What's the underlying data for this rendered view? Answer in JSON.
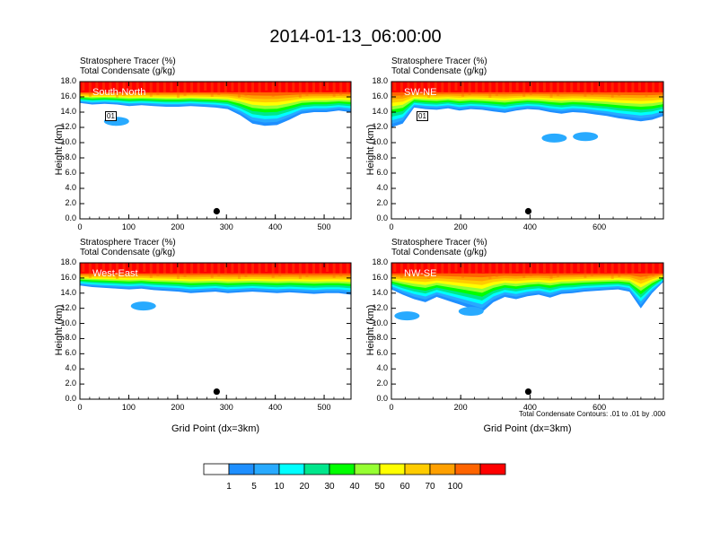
{
  "title": "2014-01-13_06:00:00",
  "colorbar": {
    "colors": [
      "#ffffff",
      "#1e8fff",
      "#28aaff",
      "#00ffff",
      "#00e68c",
      "#00ff00",
      "#96ff32",
      "#ffff00",
      "#ffcc00",
      "#ffa000",
      "#ff6400",
      "#ff0000"
    ],
    "labels": [
      "1",
      "5",
      "10",
      "20",
      "30",
      "40",
      "50",
      "60",
      "70",
      "100"
    ]
  },
  "contour_note": "Total Condensate Contours: .01 to .01 by .000",
  "chart_data": [
    {
      "type": "heatmap",
      "label": "South-North",
      "title_line1": "Stratosphere Tracer   (%)",
      "title_line2": "Total Condensate   (g/kg)",
      "ylabel": "Height (km)",
      "xlabel": "",
      "xlim": [
        0,
        555
      ],
      "ylim": [
        0,
        18
      ],
      "xticks": [
        "0",
        "100",
        "200",
        "300",
        "400",
        "500"
      ],
      "yticks": [
        "0.0",
        "2.0",
        "4.0",
        "6.0",
        "8.0",
        "10.0",
        "12.0",
        "14.0",
        "16.0",
        "18.0"
      ],
      "contour_label": "01",
      "marker": {
        "x": 280,
        "y": 1.0
      },
      "tracer_bottom_km": [
        15.2,
        15.0,
        15.1,
        15.0,
        14.8,
        14.9,
        14.8,
        14.7,
        14.7,
        14.8,
        14.7,
        14.6,
        14.4,
        13.6,
        12.5,
        12.2,
        12.3,
        13.0,
        13.8,
        14.0,
        14.0,
        14.2,
        14.0
      ],
      "blobs": [
        {
          "x": 75,
          "y": 12.8
        }
      ]
    },
    {
      "type": "heatmap",
      "label": "SW-NE",
      "title_line1": "Stratosphere Tracer   (%)",
      "title_line2": "Total Condensate   (g/kg)",
      "ylabel": "Height (km)",
      "xlabel": "",
      "xlim": [
        0,
        785
      ],
      "ylim": [
        0,
        18
      ],
      "xticks": [
        "0",
        "200",
        "400",
        "600"
      ],
      "yticks": [
        "0.0",
        "2.0",
        "4.0",
        "6.0",
        "8.0",
        "10.0",
        "12.0",
        "14.0",
        "16.0",
        "18.0"
      ],
      "contour_label": "01",
      "marker": {
        "x": 395,
        "y": 1.0
      },
      "tracer_bottom_km": [
        12.0,
        12.5,
        14.6,
        14.4,
        14.3,
        14.5,
        14.2,
        14.4,
        14.3,
        14.1,
        13.9,
        14.2,
        14.4,
        14.3,
        14.0,
        13.8,
        14.0,
        13.9,
        13.7,
        13.5,
        13.2,
        13.0,
        12.8,
        13.0,
        13.5
      ],
      "blobs": [
        {
          "x": 560,
          "y": 10.8
        },
        {
          "x": 470,
          "y": 10.6
        }
      ]
    },
    {
      "type": "heatmap",
      "label": "West-East",
      "title_line1": "Stratosphere Tracer   (%)",
      "title_line2": "Total Condensate   (g/kg)",
      "ylabel": "Height (km)",
      "xlabel": "Grid Point (dx=3km)",
      "xlim": [
        0,
        555
      ],
      "ylim": [
        0,
        18
      ],
      "xticks": [
        "0",
        "100",
        "200",
        "300",
        "400",
        "500"
      ],
      "yticks": [
        "0.0",
        "2.0",
        "4.0",
        "6.0",
        "8.0",
        "10.0",
        "12.0",
        "14.0",
        "16.0",
        "18.0"
      ],
      "contour_label": "",
      "marker": {
        "x": 280,
        "y": 1.0
      },
      "tracer_bottom_km": [
        15.0,
        14.8,
        14.7,
        14.6,
        14.5,
        14.6,
        14.4,
        14.3,
        14.2,
        14.0,
        14.1,
        14.2,
        14.0,
        14.1,
        14.2,
        14.1,
        14.0,
        14.1,
        14.0,
        13.9,
        14.0,
        14.0,
        13.8
      ],
      "blobs": [
        {
          "x": 130,
          "y": 12.3
        }
      ]
    },
    {
      "type": "heatmap",
      "label": "NW-SE",
      "title_line1": "Stratosphere Tracer   (%)",
      "title_line2": "Total Condensate   (g/kg)",
      "ylabel": "Height (km)",
      "xlabel": "Grid Point (dx=3km)",
      "xlim": [
        0,
        785
      ],
      "ylim": [
        0,
        18
      ],
      "xticks": [
        "0",
        "200",
        "400",
        "600"
      ],
      "yticks": [
        "0.0",
        "2.0",
        "4.0",
        "6.0",
        "8.0",
        "10.0",
        "12.0",
        "14.0",
        "16.0",
        "18.0"
      ],
      "contour_label": "",
      "marker": {
        "x": 395,
        "y": 1.0
      },
      "tracer_bottom_km": [
        14.5,
        13.8,
        13.2,
        12.8,
        13.5,
        13.0,
        12.5,
        12.0,
        11.5,
        12.8,
        13.5,
        13.2,
        13.6,
        13.8,
        13.4,
        13.9,
        14.0,
        14.2,
        14.3,
        14.4,
        14.5,
        14.2,
        12.0,
        14.0,
        15.5
      ],
      "blobs": [
        {
          "x": 45,
          "y": 11.0
        },
        {
          "x": 230,
          "y": 11.6
        }
      ]
    }
  ]
}
